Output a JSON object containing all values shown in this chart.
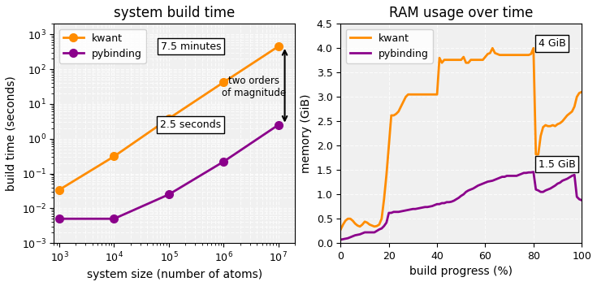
{
  "title_left": "system build time",
  "title_right": "RAM usage over time",
  "kwant_color": "#FF8C00",
  "pybinding_color": "#8B008B",
  "left_xlabel": "system size (number of atoms)",
  "left_ylabel": "build time (seconds)",
  "right_xlabel": "build progress (%)",
  "right_ylabel": "memory (GiB)",
  "kwant_x": [
    1000,
    10000,
    100000,
    1000000,
    10000000
  ],
  "kwant_y": [
    0.034,
    0.31,
    3.8,
    42,
    450
  ],
  "pybinding_x": [
    1000,
    10000,
    100000,
    1000000,
    10000000
  ],
  "pybinding_y": [
    0.005,
    0.005,
    0.025,
    0.22,
    2.5
  ],
  "annotation_75min": "7.5 minutes",
  "annotation_25sec": "2.5 seconds",
  "annotation_orders": "two orders\nof magnitude",
  "annotation_4gib": "4 GiB",
  "annotation_15gib": "1.5 GiB",
  "kwant_ram_x": [
    0,
    1,
    2,
    3,
    4,
    5,
    6,
    7,
    8,
    9,
    10,
    11,
    12,
    13,
    14,
    15,
    16,
    17,
    18,
    19,
    20,
    21,
    22,
    23,
    24,
    25,
    26,
    27,
    28,
    29,
    30,
    31,
    32,
    33,
    34,
    35,
    36,
    37,
    38,
    39,
    40,
    41,
    42,
    43,
    44,
    45,
    46,
    47,
    48,
    49,
    50,
    51,
    52,
    53,
    54,
    55,
    56,
    57,
    58,
    59,
    60,
    61,
    62,
    63,
    64,
    65,
    66,
    67,
    68,
    69,
    70,
    71,
    72,
    73,
    74,
    75,
    76,
    77,
    78,
    79,
    80,
    81,
    82,
    83,
    84,
    85,
    86,
    87,
    88,
    89,
    90,
    91,
    92,
    93,
    94,
    95,
    96,
    97,
    98,
    99,
    100
  ],
  "kwant_ram_y": [
    0.28,
    0.38,
    0.46,
    0.5,
    0.5,
    0.46,
    0.4,
    0.36,
    0.34,
    0.38,
    0.44,
    0.42,
    0.38,
    0.36,
    0.34,
    0.35,
    0.38,
    0.5,
    0.9,
    1.4,
    2.0,
    2.62,
    2.62,
    2.65,
    2.7,
    2.8,
    2.9,
    3.0,
    3.05,
    3.05,
    3.05,
    3.05,
    3.05,
    3.05,
    3.05,
    3.05,
    3.05,
    3.05,
    3.05,
    3.05,
    3.05,
    3.8,
    3.7,
    3.76,
    3.76,
    3.76,
    3.76,
    3.76,
    3.76,
    3.76,
    3.76,
    3.82,
    3.7,
    3.7,
    3.76,
    3.76,
    3.76,
    3.76,
    3.76,
    3.76,
    3.82,
    3.88,
    3.9,
    4.0,
    3.9,
    3.88,
    3.86,
    3.86,
    3.86,
    3.86,
    3.86,
    3.86,
    3.86,
    3.86,
    3.86,
    3.86,
    3.86,
    3.86,
    3.86,
    3.88,
    4.0,
    1.82,
    1.82,
    2.2,
    2.38,
    2.42,
    2.4,
    2.4,
    2.42,
    2.4,
    2.44,
    2.46,
    2.5,
    2.56,
    2.62,
    2.66,
    2.7,
    2.8,
    3.0,
    3.08,
    3.1
  ],
  "pybinding_ram_x": [
    0,
    1,
    2,
    3,
    4,
    5,
    6,
    7,
    8,
    9,
    10,
    11,
    12,
    13,
    14,
    15,
    16,
    17,
    18,
    19,
    20,
    21,
    22,
    23,
    24,
    25,
    26,
    27,
    28,
    29,
    30,
    31,
    32,
    33,
    34,
    35,
    36,
    37,
    38,
    39,
    40,
    41,
    42,
    43,
    44,
    45,
    46,
    47,
    48,
    49,
    50,
    51,
    52,
    53,
    54,
    55,
    56,
    57,
    58,
    59,
    60,
    61,
    62,
    63,
    64,
    65,
    66,
    67,
    68,
    69,
    70,
    71,
    72,
    73,
    74,
    75,
    76,
    77,
    78,
    79,
    80,
    81,
    82,
    83,
    84,
    85,
    86,
    87,
    88,
    89,
    90,
    91,
    92,
    93,
    94,
    95,
    96,
    97,
    98,
    99,
    100
  ],
  "pybinding_ram_y": [
    0.07,
    0.08,
    0.09,
    0.1,
    0.12,
    0.14,
    0.16,
    0.17,
    0.18,
    0.2,
    0.22,
    0.22,
    0.22,
    0.22,
    0.22,
    0.25,
    0.28,
    0.3,
    0.35,
    0.42,
    0.62,
    0.62,
    0.64,
    0.64,
    0.64,
    0.65,
    0.66,
    0.67,
    0.68,
    0.69,
    0.7,
    0.7,
    0.71,
    0.72,
    0.73,
    0.74,
    0.74,
    0.75,
    0.76,
    0.78,
    0.8,
    0.8,
    0.82,
    0.82,
    0.84,
    0.84,
    0.85,
    0.87,
    0.9,
    0.93,
    0.97,
    1.0,
    1.05,
    1.08,
    1.1,
    1.12,
    1.15,
    1.18,
    1.2,
    1.22,
    1.24,
    1.26,
    1.27,
    1.28,
    1.3,
    1.32,
    1.34,
    1.36,
    1.36,
    1.38,
    1.38,
    1.38,
    1.38,
    1.38,
    1.4,
    1.42,
    1.44,
    1.44,
    1.45,
    1.45,
    1.46,
    1.1,
    1.08,
    1.05,
    1.05,
    1.08,
    1.1,
    1.12,
    1.15,
    1.18,
    1.22,
    1.24,
    1.28,
    1.3,
    1.32,
    1.35,
    1.38,
    1.4,
    0.95,
    0.9,
    0.88
  ]
}
